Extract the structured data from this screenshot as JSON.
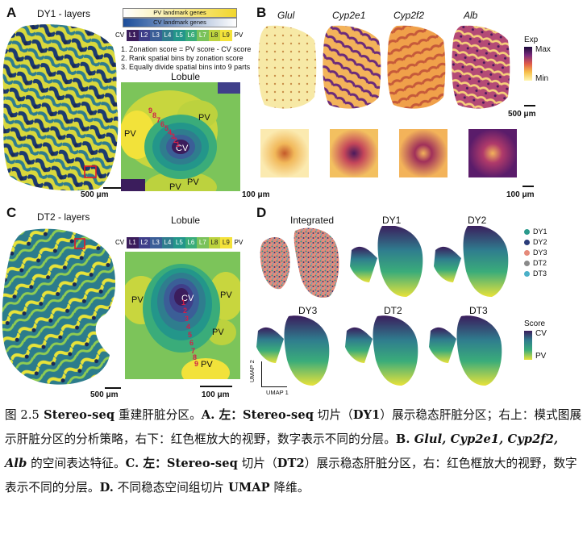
{
  "panels": {
    "A": {
      "letter": "A",
      "title": "DY1 - layers",
      "scalebar": "500 μm",
      "legend_top": "PV landmark genes",
      "legend_bottom": "CV landmark genes",
      "layers_start": "CV",
      "layers_end": "PV",
      "layers": [
        "L1",
        "L2",
        "L3",
        "L4",
        "L5",
        "L6",
        "L7",
        "L8",
        "L9"
      ],
      "steps": [
        "1. Zonation score = PV score - CV score",
        "2. Rank spatial bins by zonation score",
        "3. Equally divide spatial bins into 9 parts"
      ],
      "lobule_title": "Lobule",
      "lobule_labels": [
        "PV",
        "PV",
        "CV",
        "PV",
        "PV"
      ],
      "lobule_numbers": [
        "9",
        "8",
        "7",
        "6",
        "5",
        "4",
        "3",
        "2",
        "1"
      ],
      "lobule_scalebar": "100 μm"
    },
    "B": {
      "letter": "B",
      "genes": [
        "Glul",
        "Cyp2e1",
        "Cyp2f2",
        "Alb"
      ],
      "exp_title": "Exp",
      "exp_max": "Max",
      "exp_min": "Min",
      "scalebar": "500 μm",
      "zoom_scalebar": "100 μm"
    },
    "C": {
      "letter": "C",
      "title": "DT2 - layers",
      "scalebar": "500 μm",
      "lobule_title": "Lobule",
      "layers_start": "CV",
      "layers_end": "PV",
      "layers": [
        "L1",
        "L2",
        "L3",
        "L4",
        "L5",
        "L6",
        "L7",
        "L8",
        "L9"
      ],
      "lobule_labels": [
        "PV",
        "CV",
        "PV",
        "PV",
        "PV"
      ],
      "lobule_numbers": [
        "1",
        "2",
        "3",
        "4",
        "5",
        "6",
        "7",
        "8",
        "9"
      ],
      "lobule_scalebar": "100 μm"
    },
    "D": {
      "letter": "D",
      "umaps": [
        "Integrated",
        "DY1",
        "DY2",
        "DY3",
        "DT2",
        "DT3"
      ],
      "legend": [
        {
          "label": "DY1",
          "color": "#2a9a8c"
        },
        {
          "label": "DY2",
          "color": "#2a3d7a"
        },
        {
          "label": "DY3",
          "color": "#e58a7a"
        },
        {
          "label": "DT2",
          "color": "#8a8a8a"
        },
        {
          "label": "DT3",
          "color": "#4ab0c8"
        }
      ],
      "score_title": "Score",
      "score_max": "CV",
      "score_min": "PV",
      "axis_y": "UMAP 2",
      "axis_x": "UMAP 1"
    }
  },
  "layer_colors": [
    "#3b1d5c",
    "#3f3f8a",
    "#3b5e97",
    "#2f7d8e",
    "#23968a",
    "#3aac7a",
    "#7ac25a",
    "#bcd23e",
    "#f4e23a"
  ],
  "caption": {
    "fig": "图 2.5",
    "p1a": " Stereo-seq",
    "p1b": " 重建肝脏分区。",
    "A": "A.",
    "left1": " 左：",
    "ss1": "Stereo-seq",
    "p2": " 切片（",
    "dy1": "DY1",
    "p3": "）展示稳态肝脏分区；右上：模式图展示肝脏分区的分析策略，右下：红色框放大的视野，数字表示不同的分层。",
    "B": "B.",
    "g1": " Glul,",
    "g2": " Cyp2e1,",
    "g3": " Cyp2f2,",
    "g4": " Alb",
    "p4": " 的空间表达特征。",
    "C": "C.",
    "left2": " 左：",
    "ss2": "Stereo-seq",
    "p5": " 切片（",
    "dt2": "DT2",
    "p6": "）展示稳态肝脏分区，右：红色框放大的视野，数字表示不同的分层。",
    "D": "D.",
    "p7": " 不同稳态空间组切片",
    "umap": " UMAP",
    "p8": " 降维。"
  }
}
